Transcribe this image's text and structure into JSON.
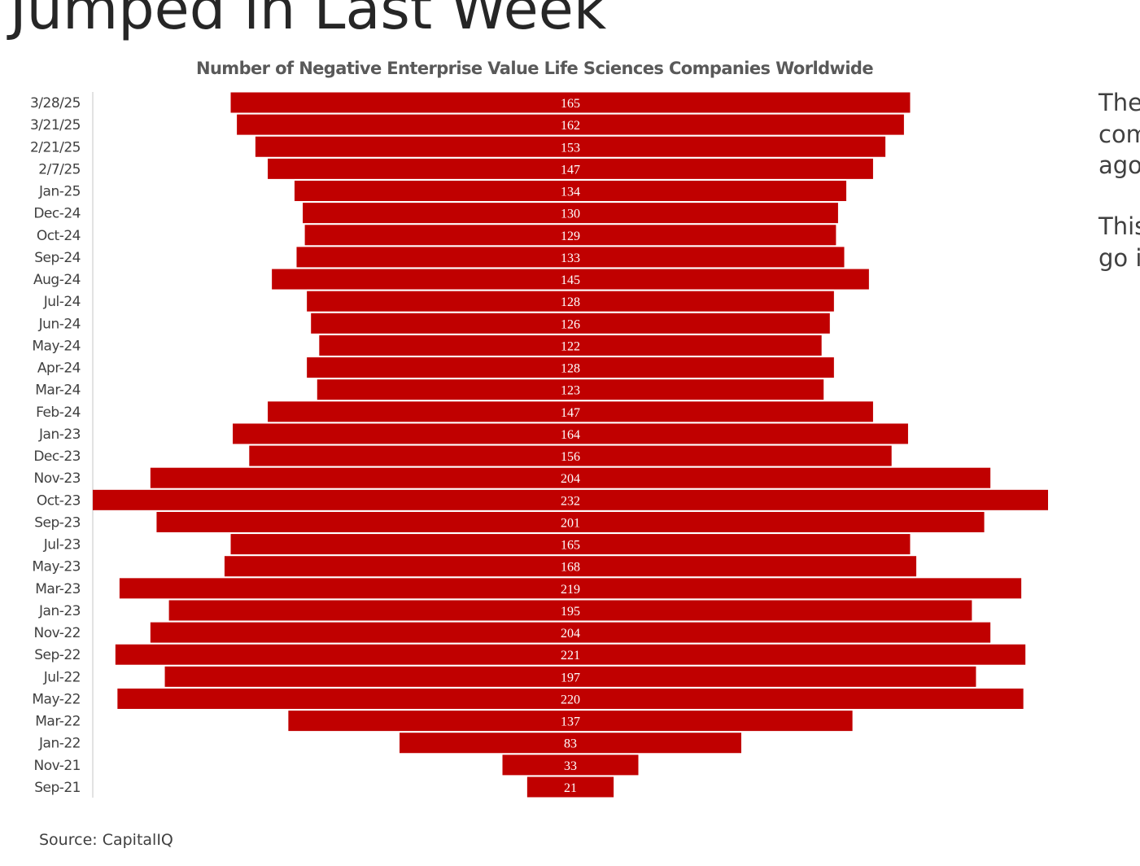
{
  "title": "Jumped in Last Week",
  "side_text": [
    "The",
    "com",
    "ago",
    "This",
    "go i"
  ],
  "source": "Source: CapitalIQ",
  "chart_data": {
    "type": "bar",
    "orientation": "horizontal",
    "centered": true,
    "title": "Number of Negative Enterprise Value Life Sciences Companies Worldwide",
    "color": "#c00000",
    "categories": [
      "3/28/25",
      "3/21/25",
      "2/21/25",
      "2/7/25",
      "Jan-25",
      "Dec-24",
      "Oct-24",
      "Sep-24",
      "Aug-24",
      "Jul-24",
      "Jun-24",
      "May-24",
      "Apr-24",
      "Mar-24",
      "Feb-24",
      "Jan-23",
      "Dec-23",
      "Nov-23",
      "Oct-23",
      "Sep-23",
      "Jul-23",
      "May-23",
      "Mar-23",
      "Jan-23",
      "Nov-22",
      "Sep-22",
      "Jul-22",
      "May-22",
      "Mar-22",
      "Jan-22",
      "Nov-21",
      "Sep-21"
    ],
    "values": [
      165,
      162,
      153,
      147,
      134,
      130,
      129,
      133,
      145,
      128,
      126,
      122,
      128,
      123,
      147,
      164,
      156,
      204,
      232,
      201,
      165,
      168,
      219,
      195,
      204,
      221,
      197,
      220,
      137,
      83,
      33,
      21
    ]
  }
}
